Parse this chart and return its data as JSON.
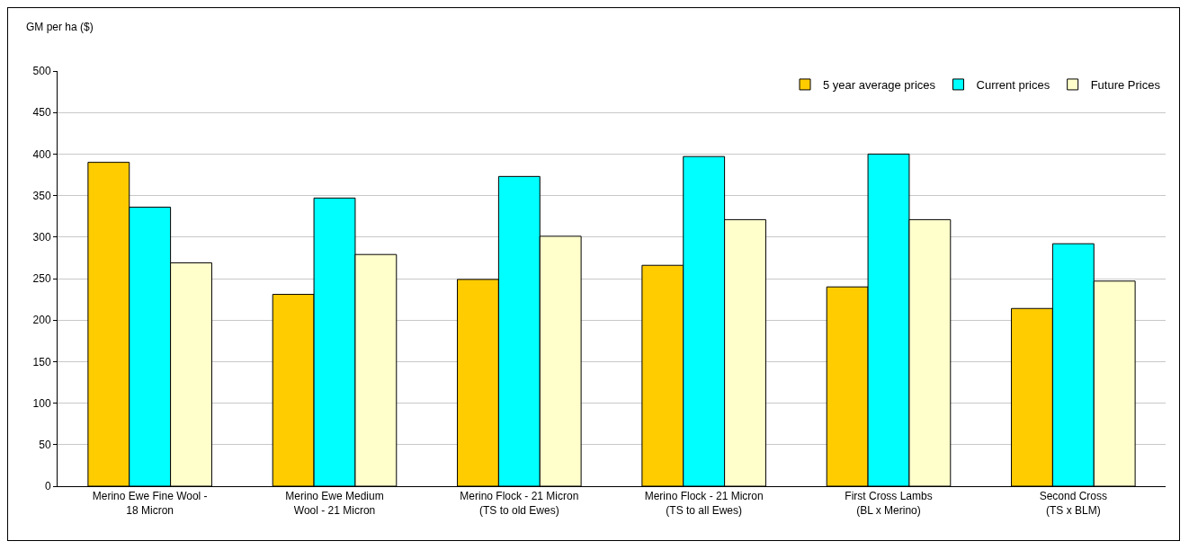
{
  "chart_data": {
    "type": "bar",
    "ylabel": "GM per ha ($)",
    "categories": [
      "Merino Ewe Fine Wool -\n18 Micron",
      "Merino Ewe Medium\nWool - 21 Micron",
      "Merino Flock - 21 Micron\n(TS to old Ewes)",
      "Merino Flock - 21 Micron\n(TS to all Ewes)",
      "First Cross Lambs\n(BL x Merino)",
      "Second Cross\n(TS x BLM)"
    ],
    "series": [
      {
        "name": "5 year average prices",
        "color": "#ffcc00",
        "values": [
          390,
          231,
          249,
          266,
          240,
          214
        ]
      },
      {
        "name": "Current prices",
        "color": "#00ffff",
        "values": [
          336,
          347,
          373,
          397,
          400,
          292
        ]
      },
      {
        "name": "Future Prices",
        "color": "#ffffcc",
        "values": [
          269,
          279,
          301,
          321,
          321,
          247
        ]
      }
    ],
    "ylim": [
      0,
      500
    ],
    "yticks": [
      0,
      50,
      100,
      150,
      200,
      250,
      300,
      350,
      400,
      450,
      500
    ],
    "grid": "y",
    "legend": "top right"
  }
}
